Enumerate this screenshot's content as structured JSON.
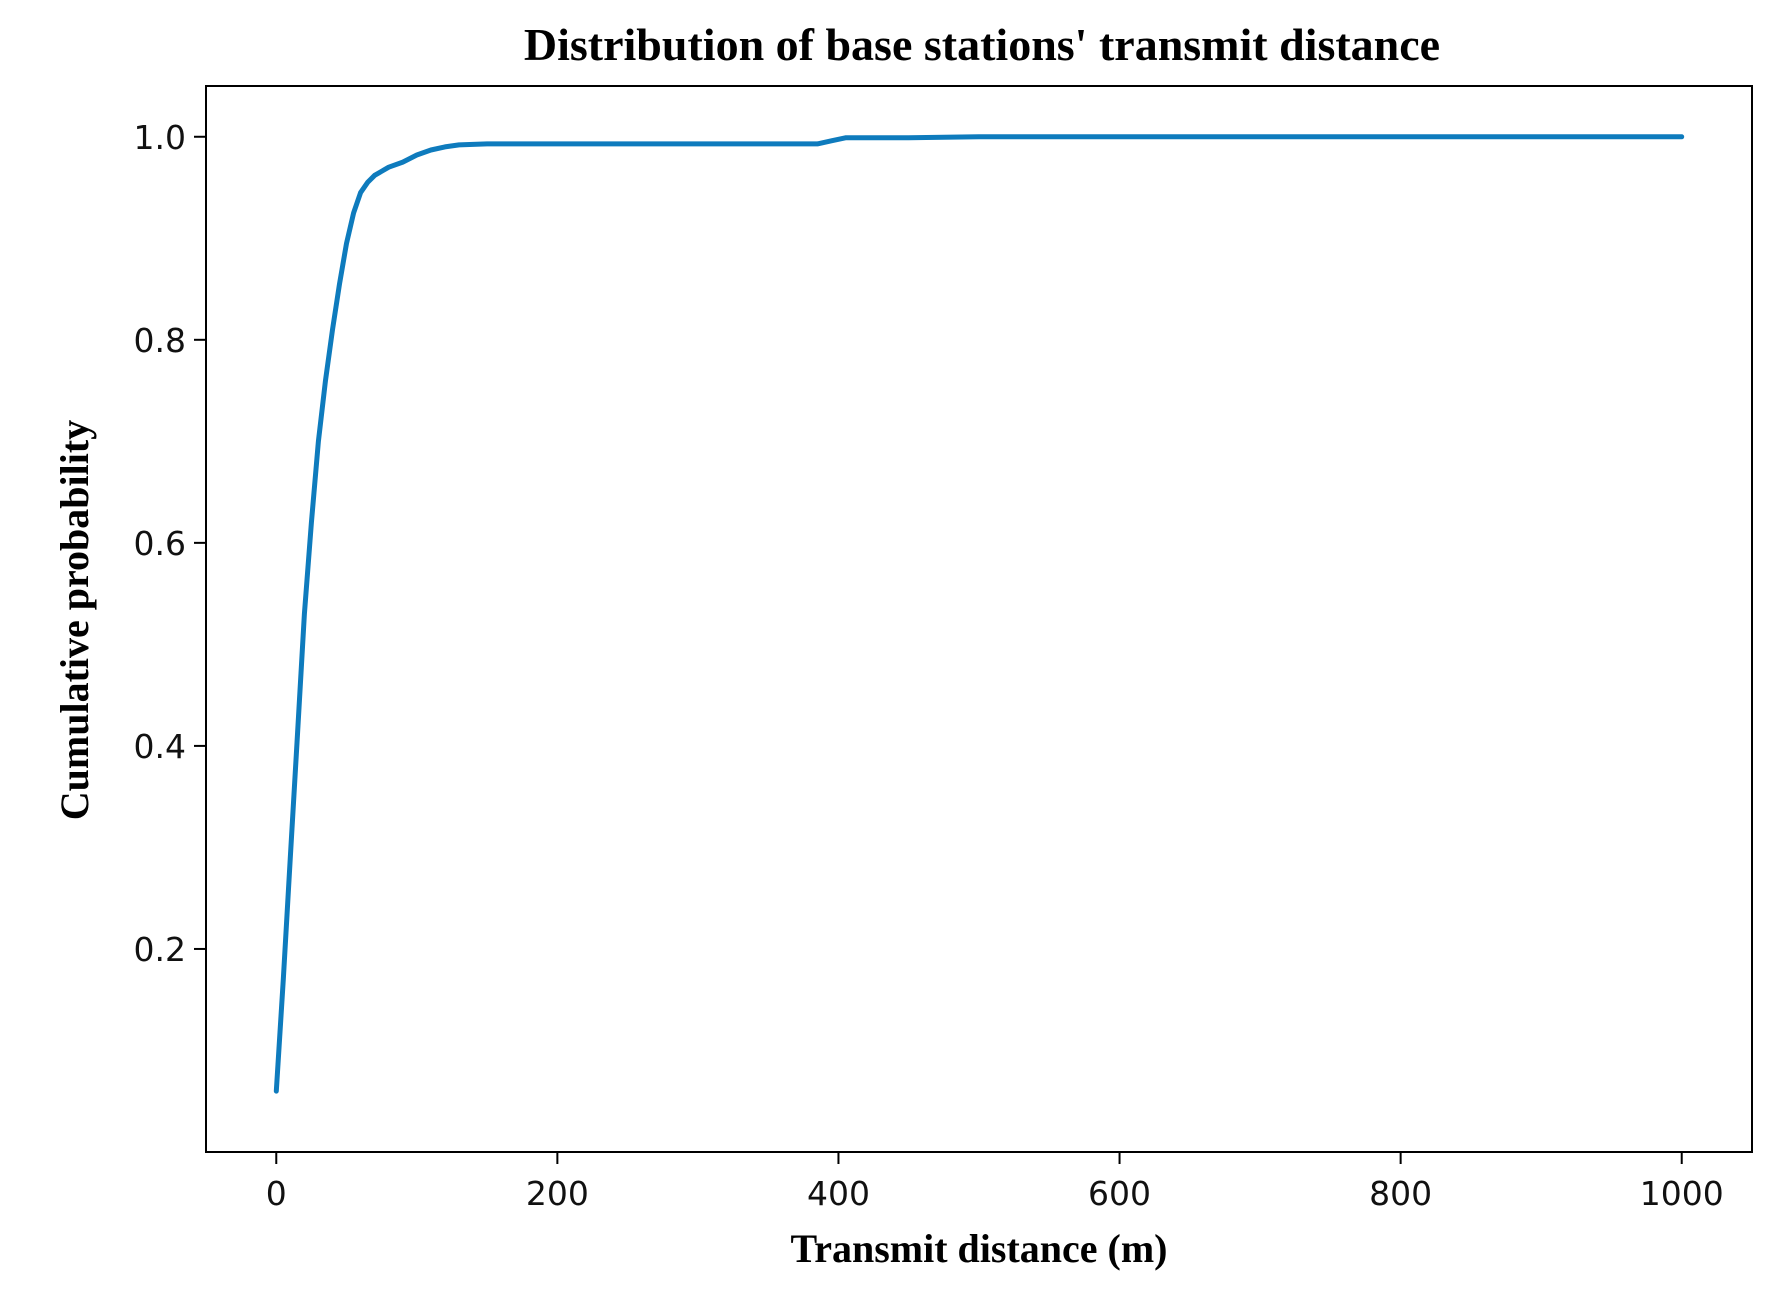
{
  "chart_data": {
    "type": "line",
    "title": "Distribution of base stations' transmit distance",
    "xlabel": "Transmit distance (m)",
    "ylabel": "Cumulative probability",
    "xlim": [
      -50,
      1050
    ],
    "ylim": [
      0.0,
      1.05
    ],
    "xticks": [
      {
        "value": 0,
        "label": "0"
      },
      {
        "value": 200,
        "label": "200"
      },
      {
        "value": 400,
        "label": "400"
      },
      {
        "value": 600,
        "label": "600"
      },
      {
        "value": 800,
        "label": "800"
      },
      {
        "value": 1000,
        "label": "1000"
      }
    ],
    "yticks": [
      {
        "value": 0.2,
        "label": "0.2"
      },
      {
        "value": 0.4,
        "label": "0.4"
      },
      {
        "value": 0.6,
        "label": "0.6"
      },
      {
        "value": 0.8,
        "label": "0.8"
      },
      {
        "value": 1.0,
        "label": "1.0"
      }
    ],
    "grid": false,
    "legend": null,
    "series": [
      {
        "color": "#0e7bbd",
        "x": [
          0,
          5,
          10,
          15,
          20,
          25,
          30,
          35,
          40,
          45,
          50,
          55,
          60,
          65,
          70,
          80,
          90,
          100,
          110,
          120,
          130,
          150,
          200,
          300,
          385,
          395,
          405,
          450,
          500,
          600,
          700,
          800,
          900,
          1000
        ],
        "y": [
          0.06,
          0.17,
          0.29,
          0.41,
          0.53,
          0.62,
          0.7,
          0.76,
          0.81,
          0.855,
          0.895,
          0.925,
          0.945,
          0.955,
          0.962,
          0.97,
          0.975,
          0.982,
          0.987,
          0.99,
          0.992,
          0.993,
          0.993,
          0.993,
          0.993,
          0.996,
          0.999,
          0.999,
          1.0,
          1.0,
          1.0,
          1.0,
          1.0,
          1.0
        ]
      }
    ]
  }
}
